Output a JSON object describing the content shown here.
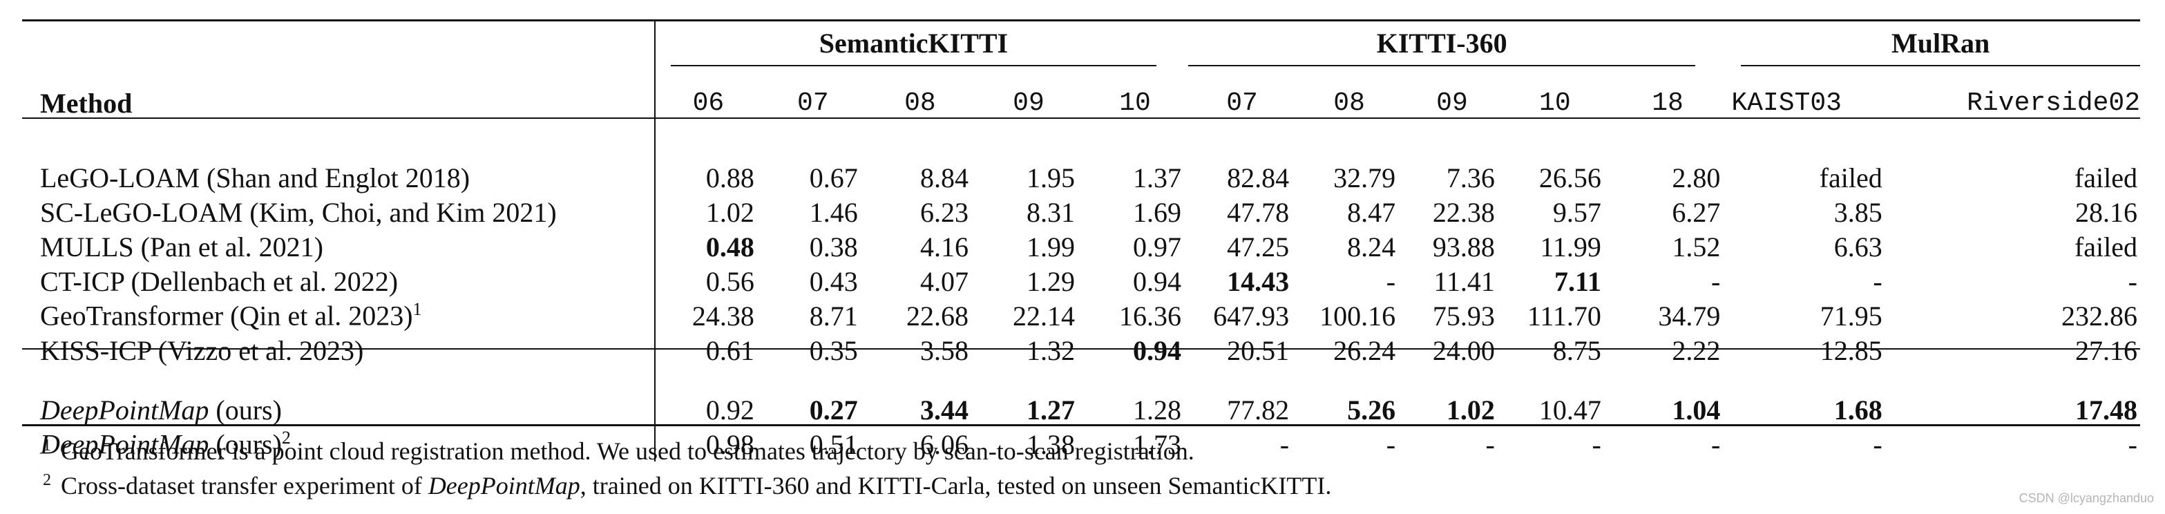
{
  "table": {
    "groups": [
      {
        "label": "SemanticKITTI"
      },
      {
        "label": "KITTI-360"
      },
      {
        "label": "MulRan"
      }
    ],
    "method_header": "Method",
    "columns": [
      "06",
      "07",
      "08",
      "09",
      "10",
      "07",
      "08",
      "09",
      "10",
      "18",
      "KAIST03",
      "Riverside02"
    ],
    "rows": [
      {
        "method": "LeGO-LOAM (Shan and Englot 2018)",
        "sup": "",
        "values": [
          "0.88",
          "0.67",
          "8.84",
          "1.95",
          "1.37",
          "82.84",
          "32.79",
          "7.36",
          "26.56",
          "2.80",
          "failed",
          "failed"
        ]
      },
      {
        "method": "SC-LeGO-LOAM (Kim, Choi, and Kim 2021)",
        "sup": "",
        "values": [
          "1.02",
          "1.46",
          "6.23",
          "8.31",
          "1.69",
          "47.78",
          "8.47",
          "22.38",
          "9.57",
          "6.27",
          "3.85",
          "28.16"
        ]
      },
      {
        "method": "MULLS (Pan et al. 2021)",
        "sup": "",
        "values": [
          "0.48",
          "0.38",
          "4.16",
          "1.99",
          "0.97",
          "47.25",
          "8.24",
          "93.88",
          "11.99",
          "1.52",
          "6.63",
          "failed"
        ]
      },
      {
        "method": "CT-ICP (Dellenbach et al. 2022)",
        "sup": "",
        "values": [
          "0.56",
          "0.43",
          "4.07",
          "1.29",
          "0.94",
          "14.43",
          "-",
          "11.41",
          "7.11",
          "-",
          "-",
          "-"
        ]
      },
      {
        "method": "GeoTransformer (Qin et al. 2023)",
        "sup": "1",
        "values": [
          "24.38",
          "8.71",
          "22.68",
          "22.14",
          "16.36",
          "647.93",
          "100.16",
          "75.93",
          "111.70",
          "34.79",
          "71.95",
          "232.86"
        ]
      },
      {
        "method": "KISS-ICP (Vizzo et al. 2023)",
        "sup": "",
        "values": [
          "0.61",
          "0.35",
          "3.58",
          "1.32",
          "0.94",
          "20.51",
          "26.24",
          "24.00",
          "8.75",
          "2.22",
          "12.85",
          "27.16"
        ]
      }
    ],
    "ours_rows": [
      {
        "method_italic": "DeepPointMap",
        "method_suffix": " (ours)",
        "sup": "",
        "values": [
          "0.92",
          "0.27",
          "3.44",
          "1.27",
          "1.28",
          "77.82",
          "5.26",
          "1.02",
          "10.47",
          "1.04",
          "1.68",
          "17.48"
        ]
      },
      {
        "method_italic": "DeepPointMap",
        "method_suffix": " (ours)",
        "sup": "2",
        "values": [
          "0.98",
          "0.51",
          "6.06",
          "1.38",
          "1.73",
          "-",
          "-",
          "-",
          "-",
          "-",
          "-",
          "-"
        ]
      }
    ]
  },
  "footnotes": [
    {
      "mark": "1",
      "text": "GeoTransformer is a point cloud registration method. We used to estimates trajectory by scan-to-scan registration."
    },
    {
      "mark": "2",
      "pre": "Cross-dataset transfer experiment of ",
      "italic": "DeepPointMap",
      "post": ", trained on KITTI-360 and KITTI-Carla, tested on unseen SemanticKITTI."
    }
  ],
  "watermark": "CSDN @lcyangzhanduo"
}
